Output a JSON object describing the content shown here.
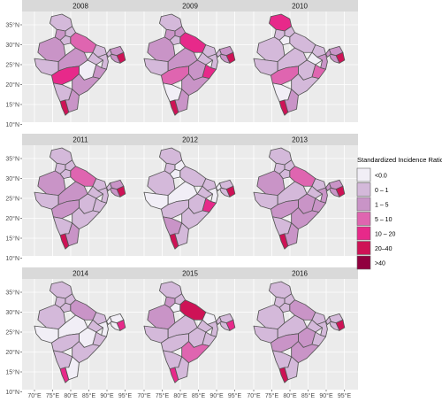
{
  "panels": [
    {
      "year": "2008",
      "fills": [
        1,
        1,
        2,
        3,
        1,
        2,
        1,
        2,
        1,
        1,
        1,
        0,
        2,
        4,
        2,
        1,
        5,
        2
      ]
    },
    {
      "year": "2009",
      "fills": [
        1,
        2,
        2,
        4,
        1,
        2,
        1,
        2,
        1,
        1,
        1,
        2,
        4,
        3,
        2,
        0,
        5,
        2
      ]
    },
    {
      "year": "2010",
      "fills": [
        4,
        1,
        1,
        1,
        0,
        1,
        1,
        1,
        1,
        0,
        2,
        1,
        3,
        3,
        1,
        0,
        5,
        2
      ]
    },
    {
      "year": "2011",
      "fills": [
        1,
        1,
        1,
        3,
        1,
        2,
        1,
        2,
        1,
        1,
        1,
        1,
        1,
        2,
        1,
        1,
        5,
        2
      ]
    },
    {
      "year": "2012",
      "fills": [
        1,
        0,
        1,
        1,
        0,
        1,
        0,
        0,
        1,
        1,
        0,
        1,
        4,
        1,
        1,
        2,
        5,
        1
      ]
    },
    {
      "year": "2013",
      "fills": [
        1,
        1,
        1,
        3,
        1,
        2,
        1,
        1,
        1,
        1,
        2,
        2,
        2,
        2,
        2,
        1,
        5,
        2
      ]
    },
    {
      "year": "2014",
      "fills": [
        1,
        1,
        1,
        2,
        1,
        1,
        0,
        0,
        1,
        1,
        0,
        0,
        1,
        1,
        1,
        1,
        4,
        0
      ]
    },
    {
      "year": "2015",
      "fills": [
        1,
        1,
        2,
        5,
        0,
        2,
        1,
        1,
        0,
        1,
        1,
        1,
        1,
        1,
        3,
        1,
        4,
        1
      ]
    },
    {
      "year": "2016",
      "fills": [
        1,
        1,
        1,
        2,
        1,
        1,
        1,
        1,
        1,
        1,
        1,
        2,
        1,
        2,
        2,
        1,
        5,
        1
      ]
    }
  ],
  "y_ticks": [
    "35°N",
    "30°N",
    "25°N",
    "20°N",
    "15°N",
    "10°N"
  ],
  "x_ticks": [
    "70°E",
    "75°E",
    "80°E",
    "85°E",
    "90°E",
    "95°E"
  ],
  "legend": {
    "title": "Standardized Incidence Ratio",
    "items": [
      {
        "label": "<0.0",
        "color": "#f1eef6"
      },
      {
        "label": "0 – 1",
        "color": "#d4b9da"
      },
      {
        "label": "1 – 5",
        "color": "#c994c7"
      },
      {
        "label": "5 – 10",
        "color": "#df65b0"
      },
      {
        "label": "10 – 20",
        "color": "#e7298a"
      },
      {
        "label": "20–40",
        "color": "#ce1256"
      },
      {
        "label": ">40",
        "color": "#91003f"
      }
    ]
  }
}
